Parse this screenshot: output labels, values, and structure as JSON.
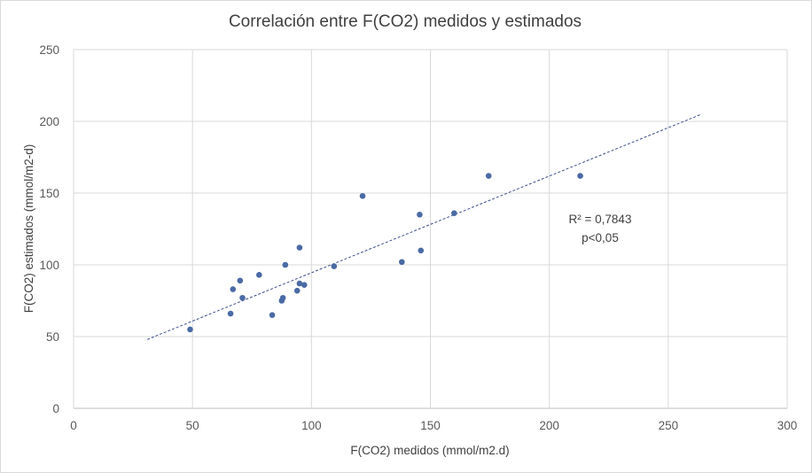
{
  "chart_data": {
    "type": "scatter",
    "title": "Correlación entre F(CO2) medidos y estimados",
    "xlabel": "F(CO2) medidos (mmol/m2.d)",
    "ylabel": "F(CO2) estimados (mmol/m2-d)",
    "xlim": [
      0,
      300
    ],
    "ylim": [
      0,
      250
    ],
    "xticks": [
      0,
      50,
      100,
      150,
      200,
      250,
      300
    ],
    "yticks": [
      0,
      50,
      100,
      150,
      200,
      250
    ],
    "grid": true,
    "legend": "none",
    "points": [
      {
        "x": 49,
        "y": 55
      },
      {
        "x": 66,
        "y": 66
      },
      {
        "x": 67,
        "y": 83
      },
      {
        "x": 70,
        "y": 89
      },
      {
        "x": 71,
        "y": 77
      },
      {
        "x": 78,
        "y": 93
      },
      {
        "x": 83.5,
        "y": 65
      },
      {
        "x": 87.5,
        "y": 75
      },
      {
        "x": 88,
        "y": 77
      },
      {
        "x": 89,
        "y": 100
      },
      {
        "x": 94,
        "y": 82
      },
      {
        "x": 95,
        "y": 87
      },
      {
        "x": 95,
        "y": 112
      },
      {
        "x": 97,
        "y": 86
      },
      {
        "x": 109.5,
        "y": 99
      },
      {
        "x": 121.5,
        "y": 148
      },
      {
        "x": 138,
        "y": 102
      },
      {
        "x": 145.5,
        "y": 135
      },
      {
        "x": 146,
        "y": 110
      },
      {
        "x": 160,
        "y": 136
      },
      {
        "x": 174.5,
        "y": 162
      },
      {
        "x": 213,
        "y": 162
      }
    ],
    "trendline": {
      "type": "linear",
      "x": [
        31,
        264
      ],
      "y": [
        48,
        205
      ],
      "style": "dashed"
    },
    "annotations": [
      "R² = 0,7843",
      "p<0,05"
    ],
    "colors": {
      "points": "#4a6aa5",
      "trendline": "#3d4f8a",
      "grid": "#d9d9d9",
      "axis": "#bfbfbf"
    }
  }
}
